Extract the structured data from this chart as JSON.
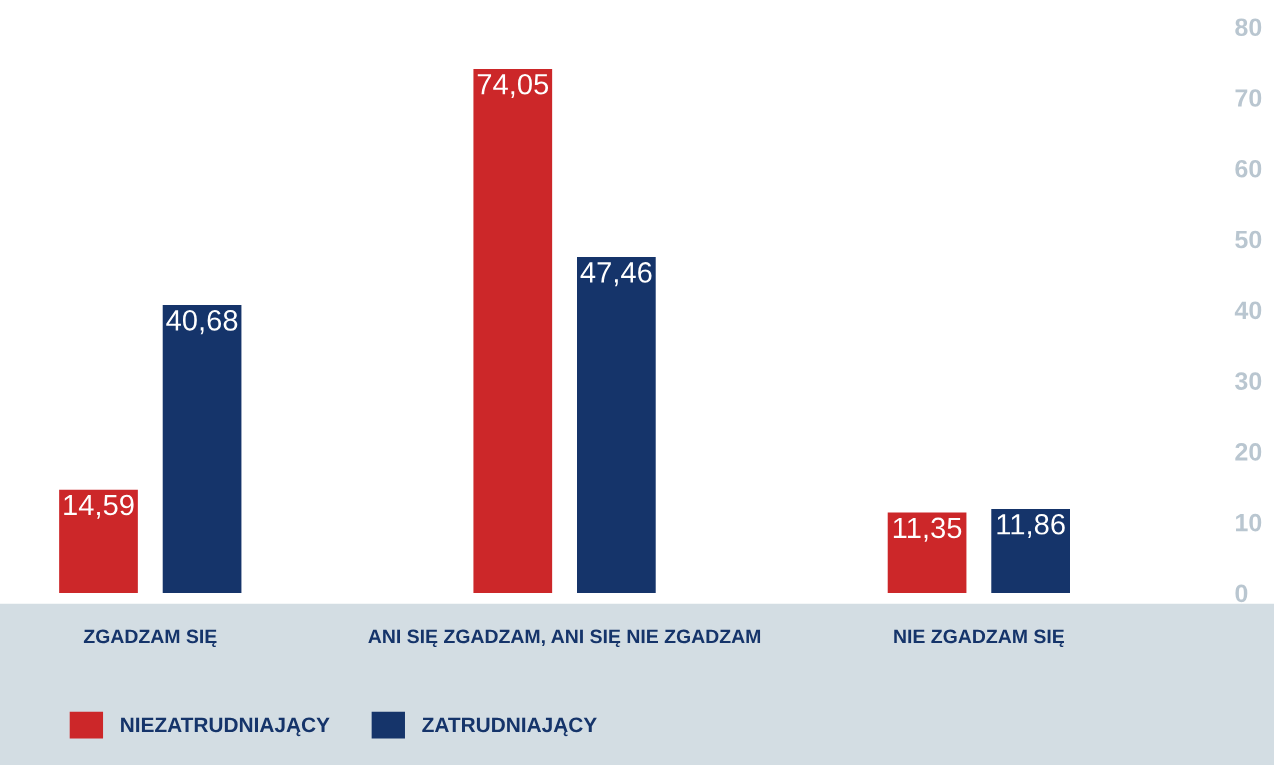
{
  "chart_data": {
    "type": "bar",
    "categories": [
      "ZGADZAM SIĘ",
      "ANI SIĘ ZGADZAM, ANI SIĘ NIE ZGADZAM",
      "NIE ZGADZAM SIĘ"
    ],
    "series": [
      {
        "name": "NIEZATRUDNIAJĄCY",
        "color": "#cc2729",
        "values": [
          14.59,
          74.05,
          11.35
        ],
        "value_labels": [
          "14,59",
          "74,05",
          "11,35"
        ]
      },
      {
        "name": "ZATRUDNIAJĄCY",
        "color": "#15346a",
        "values": [
          40.68,
          47.46,
          11.86
        ],
        "value_labels": [
          "40,68",
          "47,46",
          "11,86"
        ]
      }
    ],
    "ylim": [
      0,
      80
    ],
    "yticks": [
      0,
      10,
      20,
      30,
      40,
      50,
      60,
      70,
      80
    ],
    "grid": false,
    "legend": "bottom left"
  }
}
